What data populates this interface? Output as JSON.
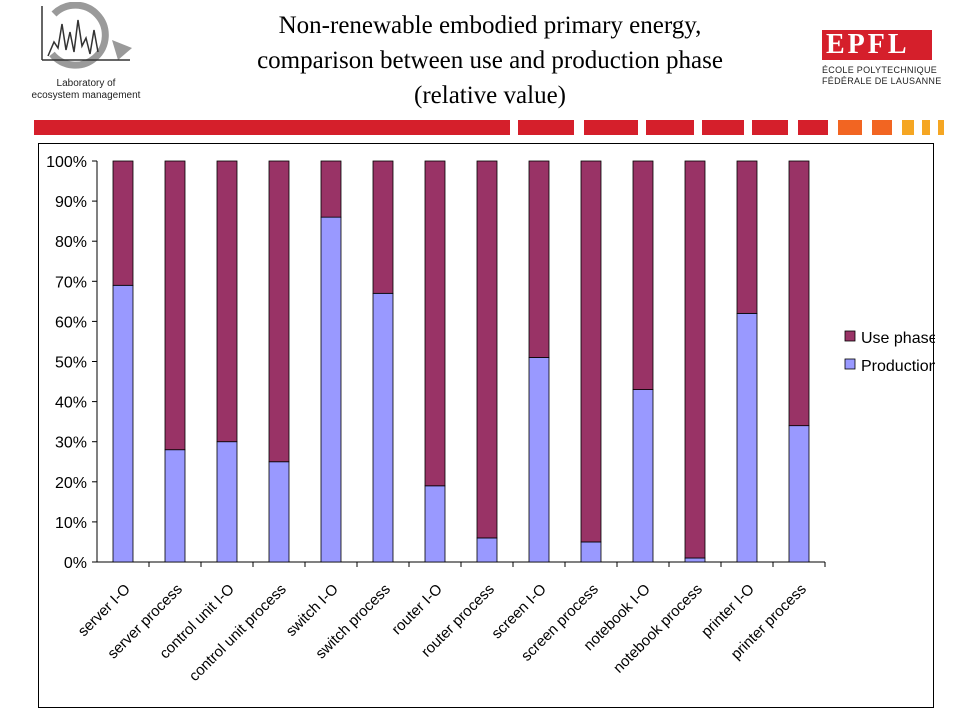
{
  "header": {
    "title_line1": "Non-renewable embodied primary energy,",
    "title_line2": "comparison between use and production phase",
    "title_line3": "(relative value)",
    "lab_line1": "Laboratory of",
    "lab_line2": "ecosystem management",
    "epfl_logo": "EPFL",
    "epfl_line1": "ÉCOLE POLYTECHNIQUE",
    "epfl_line2": "FÉDÉRALE DE LAUSANNE"
  },
  "colors": {
    "use_phase": "#993366",
    "production": "#9999ff",
    "brand_red": "#d51f2b",
    "brand_orange": "#f26522",
    "brand_amber": "#f5a623"
  },
  "chart_data": {
    "type": "bar",
    "stacked": true,
    "categories": [
      "server I-O",
      "server process",
      "control unit I-O",
      "control unit process",
      "switch I-O",
      "switch process",
      "router I-O",
      "router process",
      "screen I-O",
      "screen process",
      "notebook I-O",
      "notebook process",
      "printer I-O",
      "printer process"
    ],
    "series": [
      {
        "name": "Production",
        "color": "#9999ff",
        "values": [
          69,
          28,
          30,
          25,
          86,
          67,
          19,
          6,
          51,
          5,
          43,
          1,
          62,
          34
        ]
      },
      {
        "name": "Use phase",
        "color": "#993366",
        "values": [
          31,
          72,
          70,
          75,
          14,
          33,
          81,
          94,
          49,
          95,
          57,
          99,
          38,
          66
        ]
      }
    ],
    "ylim": [
      0,
      100
    ],
    "yticks": [
      "0%",
      "10%",
      "20%",
      "30%",
      "40%",
      "50%",
      "60%",
      "70%",
      "80%",
      "90%",
      "100%"
    ],
    "legend": {
      "position": "right",
      "entries": [
        "Use phase",
        "Production"
      ]
    }
  }
}
